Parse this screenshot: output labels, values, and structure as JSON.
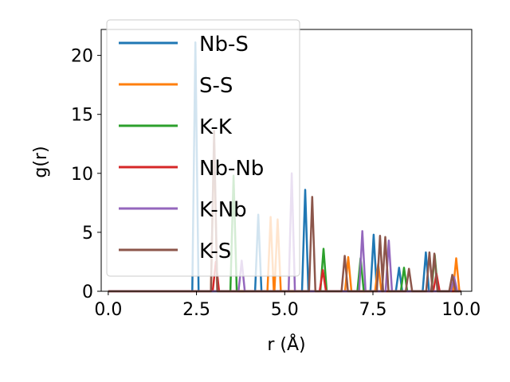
{
  "chart_data": {
    "type": "line",
    "xlabel": "r (Å)",
    "ylabel": "g(r)",
    "xlim": [
      -0.2,
      10.3
    ],
    "ylim": [
      0,
      22.2
    ],
    "xticks": [
      0.0,
      2.5,
      5.0,
      7.5,
      10.0
    ],
    "xtick_labels": [
      "0.0",
      "2.5",
      "5.0",
      "7.5",
      "10.0"
    ],
    "yticks": [
      0,
      5,
      10,
      15,
      20
    ],
    "ytick_labels": [
      "0",
      "5",
      "10",
      "15",
      "20"
    ],
    "legend_position": "top-left",
    "grid": false,
    "series": [
      {
        "name": "Nb-S",
        "color": "#1f77b4",
        "peaks": [
          [
            2.47,
            21.1
          ],
          [
            4.25,
            6.5
          ],
          [
            5.58,
            8.6
          ],
          [
            7.52,
            4.8
          ],
          [
            8.24,
            2.0
          ],
          [
            9.0,
            3.3
          ]
        ]
      },
      {
        "name": "S-S",
        "color": "#ff7f0e",
        "peaks": [
          [
            3.0,
            12.8
          ],
          [
            4.6,
            6.3
          ],
          [
            4.8,
            6.1
          ],
          [
            6.8,
            2.9
          ],
          [
            7.65,
            2.3
          ],
          [
            9.86,
            2.8
          ]
        ]
      },
      {
        "name": "K-K",
        "color": "#2ca02c",
        "peaks": [
          [
            3.55,
            9.8
          ],
          [
            6.1,
            3.6
          ],
          [
            7.15,
            2.8
          ],
          [
            8.38,
            2.0
          ],
          [
            9.25,
            3.1
          ]
        ]
      },
      {
        "name": "Nb-Nb",
        "color": "#d62728",
        "peaks": [
          [
            3.05,
            2.5
          ],
          [
            6.08,
            1.8
          ],
          [
            9.3,
            1.5
          ]
        ]
      },
      {
        "name": "K-Nb",
        "color": "#9467bd",
        "peaks": [
          [
            3.78,
            2.6
          ],
          [
            5.2,
            10.0
          ],
          [
            7.2,
            5.1
          ],
          [
            7.95,
            4.3
          ],
          [
            9.8,
            1.2
          ]
        ]
      },
      {
        "name": "K-S",
        "color": "#8c564b",
        "peaks": [
          [
            3.0,
            13.6
          ],
          [
            5.78,
            8.0
          ],
          [
            6.7,
            3.0
          ],
          [
            7.7,
            4.7
          ],
          [
            7.85,
            4.6
          ],
          [
            8.52,
            1.9
          ],
          [
            9.1,
            3.3
          ],
          [
            9.24,
            3.2
          ],
          [
            9.75,
            1.4
          ]
        ]
      }
    ]
  }
}
